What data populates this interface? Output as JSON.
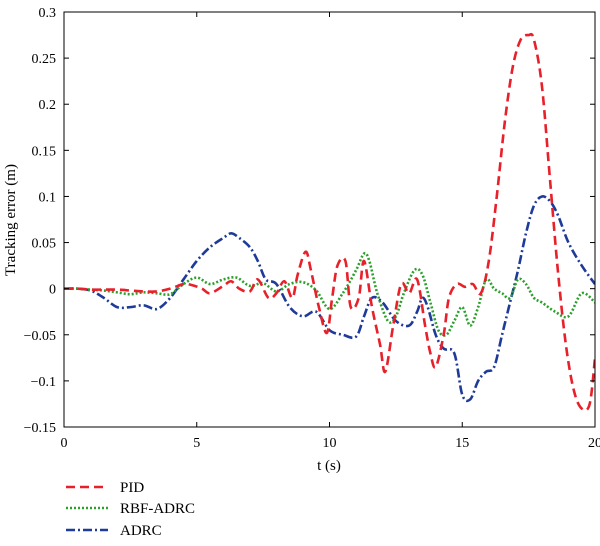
{
  "chart_data": {
    "type": "line",
    "title": "",
    "xlabel": "t (s)",
    "ylabel": "Tracking error (m)",
    "xlim": [
      0,
      20
    ],
    "ylim": [
      -0.15,
      0.3
    ],
    "xticks": [
      0,
      5,
      10,
      15,
      20
    ],
    "xtick_labels": [
      "0",
      "5",
      "10",
      "15",
      "20"
    ],
    "yticks": [
      -0.15,
      -0.1,
      -0.05,
      0,
      0.05,
      0.1,
      0.15,
      0.2,
      0.25,
      0.3
    ],
    "ytick_labels": [
      "−0.15",
      "−0.1",
      "−0.05",
      "0",
      "0.05",
      "0.1",
      "0.15",
      "0.2",
      "0.25",
      "0.3"
    ],
    "grid": false,
    "legend_position": "bottom-left, below plot",
    "series": [
      {
        "name": "PID",
        "color": "#e8202a",
        "dash": "dashed",
        "x": [
          0,
          0.5,
          1,
          1.5,
          2,
          2.5,
          3,
          3.5,
          4,
          4.5,
          4.8,
          5.2,
          5.5,
          6,
          6.3,
          6.6,
          7,
          7.3,
          7.7,
          8,
          8.3,
          8.6,
          8.8,
          9.1,
          9.3,
          9.6,
          9.9,
          10.1,
          10.3,
          10.6,
          10.8,
          11.1,
          11.3,
          11.6,
          11.9,
          12.1,
          12.4,
          12.7,
          13,
          13.3,
          13.6,
          13.8,
          14,
          14.3,
          14.5,
          14.8,
          15.1,
          15.4,
          15.7,
          16,
          16.3,
          16.6,
          16.9,
          17.2,
          17.5,
          17.7,
          18,
          18.3,
          18.6,
          18.9,
          19.2,
          19.5,
          19.8,
          20
        ],
        "y": [
          0,
          0,
          -0.001,
          -0.001,
          -0.001,
          -0.002,
          -0.003,
          -0.003,
          0,
          0.005,
          0.004,
          0,
          -0.005,
          0.003,
          0.008,
          0,
          -0.003,
          0.01,
          -0.01,
          -0.005,
          0.008,
          -0.01,
          0.015,
          0.04,
          0.02,
          -0.02,
          -0.048,
          -0.01,
          0.025,
          0.03,
          -0.02,
          -0.01,
          0.03,
          -0.02,
          -0.06,
          -0.09,
          -0.04,
          0.005,
          -0.005,
          0.01,
          -0.04,
          -0.07,
          -0.085,
          -0.05,
          -0.01,
          0.005,
          0.002,
          0.005,
          -0.005,
          0.03,
          0.1,
          0.18,
          0.24,
          0.27,
          0.275,
          0.27,
          0.22,
          0.12,
          0.02,
          -0.06,
          -0.11,
          -0.13,
          -0.125,
          -0.075
        ]
      },
      {
        "name": "RBF-ADRC",
        "color": "#2ca02c",
        "dash": "dotted",
        "x": [
          0,
          0.5,
          1,
          1.5,
          2,
          2.5,
          3,
          3.5,
          4,
          4.5,
          5,
          5.5,
          6,
          6.5,
          7,
          7.5,
          8,
          8.5,
          9,
          9.5,
          10,
          10.5,
          11,
          11.3,
          11.5,
          11.8,
          12.2,
          12.5,
          12.8,
          13.2,
          13.5,
          13.8,
          14.1,
          14.4,
          14.7,
          15,
          15.3,
          15.6,
          15.9,
          16.2,
          16.5,
          16.8,
          17.1,
          17.4,
          17.7,
          18,
          18.5,
          19,
          19.5,
          20
        ],
        "y": [
          0,
          0,
          -0.001,
          -0.002,
          -0.004,
          -0.006,
          -0.004,
          -0.005,
          -0.006,
          0.005,
          0.012,
          0.005,
          0.01,
          0.012,
          0.003,
          0.006,
          -0.003,
          0.005,
          0.007,
          -0.002,
          -0.022,
          -0.005,
          0.02,
          0.038,
          0.03,
          -0.005,
          -0.035,
          -0.03,
          -0.005,
          0.02,
          0.015,
          -0.015,
          -0.045,
          -0.05,
          -0.035,
          -0.02,
          -0.04,
          -0.02,
          0.01,
          0,
          -0.005,
          -0.01,
          0.01,
          0.005,
          -0.01,
          -0.015,
          -0.025,
          -0.03,
          -0.005,
          -0.015
        ]
      },
      {
        "name": "ADRC",
        "color": "#1f3b9a",
        "dash": "dashdot",
        "x": [
          0,
          0.5,
          1,
          1.5,
          2,
          2.5,
          3,
          3.5,
          4,
          4.5,
          5,
          5.5,
          6,
          6.3,
          6.6,
          7,
          7.3,
          7.6,
          8,
          8.5,
          9,
          9.5,
          10,
          10.5,
          11,
          11.3,
          11.6,
          12,
          12.5,
          13,
          13.3,
          13.5,
          13.7,
          14,
          14.3,
          14.7,
          15,
          15.3,
          15.6,
          15.9,
          16.2,
          16.5,
          16.8,
          17.1,
          17.4,
          17.7,
          18,
          18.3,
          18.6,
          19,
          19.5,
          20
        ],
        "y": [
          0,
          0,
          -0.002,
          -0.01,
          -0.02,
          -0.02,
          -0.018,
          -0.022,
          -0.01,
          0.01,
          0.03,
          0.045,
          0.055,
          0.06,
          0.055,
          0.045,
          0.03,
          0.01,
          0.005,
          -0.02,
          -0.03,
          -0.025,
          -0.045,
          -0.05,
          -0.052,
          -0.03,
          -0.01,
          -0.015,
          -0.035,
          -0.04,
          -0.025,
          -0.01,
          -0.02,
          -0.05,
          -0.065,
          -0.07,
          -0.115,
          -0.12,
          -0.1,
          -0.09,
          -0.085,
          -0.05,
          -0.015,
          0.02,
          0.06,
          0.09,
          0.1,
          0.095,
          0.08,
          0.05,
          0.025,
          0.005
        ]
      }
    ]
  }
}
